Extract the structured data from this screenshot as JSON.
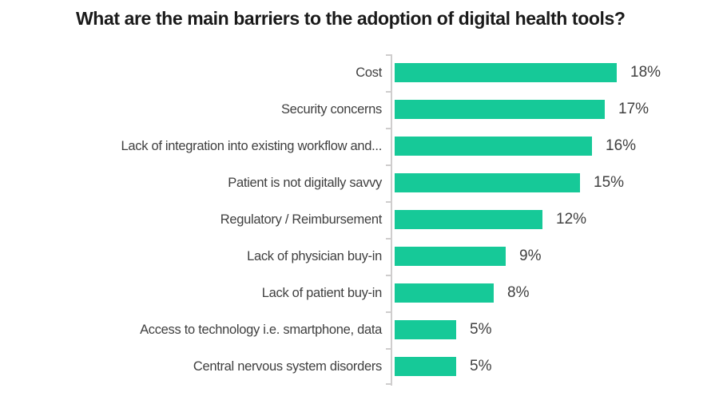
{
  "chart": {
    "title": "What are the main barriers to the adoption of digital health tools?"
  },
  "chart_data": {
    "type": "bar",
    "orientation": "horizontal",
    "title": "What are the main barriers to the adoption of digital health tools?",
    "categories": [
      "Cost",
      "Security concerns",
      "Lack of integration into existing workflow and...",
      "Patient is not digitally savvy",
      "Regulatory / Reimbursement",
      "Lack of physician buy-in",
      "Lack of patient buy-in",
      "Access to technology i.e. smartphone, data",
      "Central nervous system disorders"
    ],
    "values": [
      18,
      17,
      16,
      15,
      12,
      9,
      8,
      5,
      5
    ],
    "data_labels": [
      "18%",
      "17%",
      "16%",
      "15%",
      "12%",
      "9%",
      "8%",
      "5%",
      "5%"
    ],
    "xlabel": "",
    "ylabel": "",
    "xlim": [
      0,
      18
    ],
    "grid": false,
    "legend": false,
    "colors": {
      "bar": "#16c998",
      "axis": "#cfcdcd",
      "category_label": "#3f3f3f",
      "value_label": "#404040",
      "title": "#1a1a1a"
    }
  }
}
